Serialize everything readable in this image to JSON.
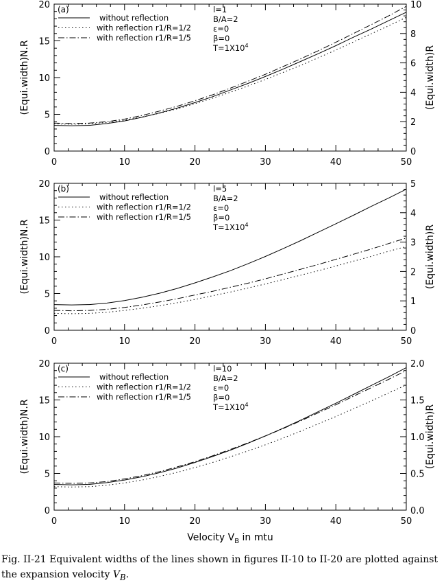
{
  "caption": {
    "text": "Fig. II-21 Equivalent widths of the lines shown in figures II-10 to II-20 are plotted against the expansion velocity",
    "symbol": "V",
    "subscript": "B",
    "end": "."
  },
  "chart_data": [
    {
      "type": "line",
      "panel_label": "(a)",
      "xlabel": "",
      "ylabel_left": "(Equi.width)N.R",
      "ylabel_right": "(Equi.width)R",
      "xlim": [
        0,
        50
      ],
      "ylim_left": [
        0,
        20
      ],
      "ylim_right": [
        0,
        10
      ],
      "xticks": [
        "0",
        "10",
        "20",
        "30",
        "40",
        "50"
      ],
      "yticks_left": [
        "0",
        "5",
        "10",
        "15",
        "20"
      ],
      "yticks_right": [
        "0",
        "2",
        "4",
        "6",
        "8",
        "10"
      ],
      "params": [
        "l=1",
        "B/A=2",
        "ε=0",
        "β=0",
        "T=1X10⁴"
      ],
      "x": [
        0,
        2.5,
        5,
        7.5,
        10,
        12.5,
        15,
        17.5,
        20,
        22.5,
        25,
        27.5,
        30,
        32.5,
        35,
        37.5,
        40,
        42.5,
        45,
        47.5,
        50
      ],
      "series": [
        {
          "name": "without reflection",
          "style": "solid",
          "values": [
            3.5,
            3.45,
            3.5,
            3.75,
            4.1,
            4.6,
            5.2,
            5.85,
            6.6,
            7.4,
            8.3,
            9.2,
            10.15,
            11.15,
            12.2,
            13.25,
            14.35,
            15.5,
            16.6,
            17.75,
            18.9
          ]
        },
        {
          "name": "with reflection r1/R=1/2",
          "style": "dotted",
          "values": [
            3.7,
            3.65,
            3.7,
            3.9,
            4.2,
            4.65,
            5.15,
            5.75,
            6.45,
            7.2,
            8.0,
            8.85,
            9.75,
            10.7,
            11.65,
            12.7,
            13.75,
            14.85,
            15.95,
            17.05,
            18.2
          ]
        },
        {
          "name": "with reflection r1/R=1/5",
          "style": "dashdot",
          "values": [
            3.8,
            3.75,
            3.8,
            4.0,
            4.35,
            4.85,
            5.45,
            6.1,
            6.85,
            7.65,
            8.55,
            9.5,
            10.45,
            11.5,
            12.55,
            13.65,
            14.8,
            16.0,
            17.2,
            18.4,
            19.7
          ]
        }
      ]
    },
    {
      "type": "line",
      "panel_label": "(b)",
      "xlabel": "",
      "ylabel_left": "(Equi.width)N.R",
      "ylabel_right": "(Equi.width)R",
      "xlim": [
        0,
        50
      ],
      "ylim_left": [
        0,
        20
      ],
      "ylim_right": [
        0,
        5
      ],
      "xticks": [
        "0",
        "10",
        "20",
        "30",
        "40",
        "50"
      ],
      "yticks_left": [
        "0",
        "5",
        "10",
        "15",
        "20"
      ],
      "yticks_right": [
        "0",
        "1",
        "2",
        "3",
        "4",
        "5"
      ],
      "params": [
        "l=5",
        "B/A=2",
        "ε=0",
        "β=0",
        "T=1X10⁴"
      ],
      "x": [
        0,
        2.5,
        5,
        7.5,
        10,
        12.5,
        15,
        17.5,
        20,
        22.5,
        25,
        27.5,
        30,
        32.5,
        35,
        37.5,
        40,
        42.5,
        45,
        47.5,
        50
      ],
      "series": [
        {
          "name": "without reflection",
          "style": "solid",
          "values": [
            3.5,
            3.45,
            3.5,
            3.7,
            4.05,
            4.5,
            5.05,
            5.7,
            6.45,
            7.25,
            8.1,
            9.05,
            10.05,
            11.1,
            12.2,
            13.35,
            14.5,
            15.65,
            16.85,
            18.0,
            19.2
          ]
        },
        {
          "name": "with reflection r1/R=1/2",
          "style": "dotted",
          "values": [
            2.3,
            2.25,
            2.3,
            2.45,
            2.7,
            3.0,
            3.35,
            3.75,
            4.2,
            4.7,
            5.2,
            5.75,
            6.3,
            6.9,
            7.5,
            8.1,
            8.75,
            9.4,
            10.05,
            10.75,
            11.4
          ]
        },
        {
          "name": "with reflection r1/R=1/5",
          "style": "dashdot",
          "values": [
            2.7,
            2.65,
            2.7,
            2.85,
            3.1,
            3.45,
            3.85,
            4.3,
            4.8,
            5.3,
            5.85,
            6.4,
            7.0,
            7.65,
            8.3,
            8.95,
            9.65,
            10.35,
            11.05,
            11.8,
            12.55
          ]
        }
      ]
    },
    {
      "type": "line",
      "panel_label": "(c)",
      "xlabel": "Velocity V",
      "xlabel_sub": "B",
      "xlabel_end": " in mtu",
      "ylabel_left": "(Equi.width)N.R",
      "ylabel_right": "(Equi.width)R",
      "xlim": [
        0,
        50
      ],
      "ylim_left": [
        0,
        20
      ],
      "ylim_right": [
        0,
        2
      ],
      "xticks": [
        "0",
        "10",
        "20",
        "30",
        "40",
        "50"
      ],
      "yticks_left": [
        "0",
        "5",
        "10",
        "15",
        "20"
      ],
      "yticks_right": [
        "0.0",
        "0.5",
        "1.0",
        "1.5",
        "2.0"
      ],
      "params": [
        "l=10",
        "B/A=2",
        "ε=0",
        "β=0",
        "T=1X10⁴"
      ],
      "x": [
        0,
        2.5,
        5,
        7.5,
        10,
        12.5,
        15,
        17.5,
        20,
        22.5,
        25,
        27.5,
        30,
        32.5,
        35,
        37.5,
        40,
        42.5,
        45,
        47.5,
        50
      ],
      "series": [
        {
          "name": "without reflection",
          "style": "solid",
          "values": [
            3.5,
            3.45,
            3.5,
            3.75,
            4.1,
            4.55,
            5.1,
            5.75,
            6.5,
            7.3,
            8.15,
            9.1,
            10.1,
            11.15,
            12.25,
            13.4,
            14.55,
            15.75,
            16.95,
            18.15,
            19.4
          ]
        },
        {
          "name": "with reflection r1/R=1/2",
          "style": "dotted",
          "values": [
            3.2,
            3.15,
            3.2,
            3.4,
            3.7,
            4.1,
            4.6,
            5.15,
            5.8,
            6.5,
            7.25,
            8.05,
            8.9,
            9.8,
            10.75,
            11.75,
            12.75,
            13.8,
            14.85,
            15.95,
            17.05
          ]
        },
        {
          "name": "with reflection r1/R=1/5",
          "style": "dashdot",
          "values": [
            3.7,
            3.65,
            3.7,
            3.9,
            4.25,
            4.7,
            5.25,
            5.9,
            6.6,
            7.4,
            8.25,
            9.15,
            10.1,
            11.1,
            12.15,
            13.25,
            14.35,
            15.5,
            16.65,
            17.8,
            19.0
          ]
        }
      ]
    }
  ]
}
